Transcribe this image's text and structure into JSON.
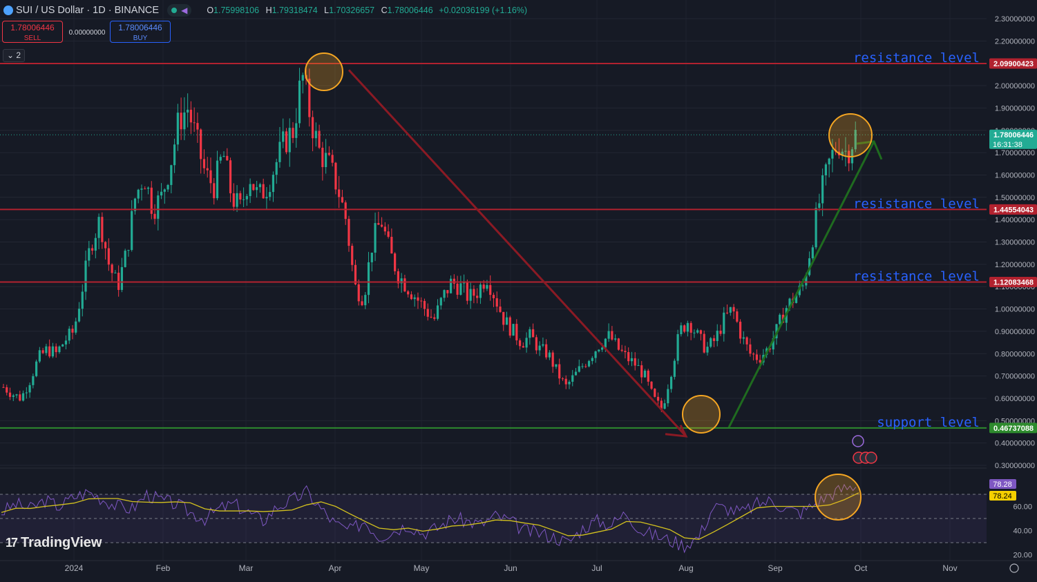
{
  "header": {
    "symbol": "SUI / US Dollar · 1D · BINANCE",
    "open_label": "O",
    "open": "1.75998106",
    "high_label": "H",
    "high": "1.79318474",
    "low_label": "L",
    "low": "1.70326657",
    "close_label": "C",
    "close": "1.78006446",
    "change": "+0.02036199 (+1.16%)"
  },
  "trade": {
    "sell_price": "1.78006446",
    "sell_label": "SELL",
    "spread": "0.00000000",
    "buy_price": "1.78006446",
    "buy_label": "BUY"
  },
  "indicator_toggle": "2",
  "logo": "TradingView",
  "colors": {
    "up": "#22ab94",
    "down": "#f23645",
    "resistance": "#b2222f",
    "support": "#2e8b2e",
    "rsi": "#7e57c2",
    "rsi_ma": "#d4c21e",
    "annotation_text": "#2962ff",
    "circle": "#f5a623"
  },
  "chart_data": {
    "type": "candlestick",
    "y_axis": {
      "min": 0.3,
      "max": 2.3,
      "step": 0.1,
      "decimals": 8
    },
    "x_ticks": [
      "2024",
      "Feb",
      "Mar",
      "Apr",
      "May",
      "Jun",
      "Jul",
      "Aug",
      "Sep",
      "Oct",
      "Nov"
    ],
    "close_series_approx": [
      0.65,
      0.62,
      0.6,
      0.68,
      0.78,
      0.82,
      0.8,
      0.86,
      0.9,
      1.1,
      1.3,
      1.4,
      1.2,
      1.1,
      1.25,
      1.5,
      1.6,
      1.45,
      1.5,
      1.65,
      1.85,
      1.9,
      1.75,
      1.6,
      1.55,
      1.7,
      1.5,
      1.45,
      1.6,
      1.5,
      1.55,
      1.65,
      1.75,
      1.8,
      2.05,
      1.85,
      1.7,
      1.65,
      1.55,
      1.4,
      1.1,
      1.05,
      1.3,
      1.4,
      1.25,
      1.15,
      1.1,
      1.05,
      1.0,
      0.95,
      1.05,
      1.12,
      1.1,
      1.05,
      1.08,
      1.15,
      1.05,
      0.95,
      0.9,
      0.85,
      0.88,
      0.82,
      0.8,
      0.72,
      0.65,
      0.7,
      0.75,
      0.8,
      0.85,
      0.88,
      0.82,
      0.78,
      0.75,
      0.7,
      0.6,
      0.55,
      0.72,
      0.9,
      0.95,
      0.88,
      0.82,
      0.86,
      0.95,
      1.0,
      0.88,
      0.8,
      0.78,
      0.82,
      0.9,
      1.0,
      1.05,
      1.1,
      1.3,
      1.5,
      1.65,
      1.75,
      1.7,
      1.78
    ],
    "price_labels": [
      {
        "value": 2.09900423,
        "text": "2.09900423",
        "color": "#b2222f"
      },
      {
        "value": 1.78006446,
        "text": "1.78006446",
        "sub": "16:31:38",
        "color": "#22ab94"
      },
      {
        "value": 1.44554043,
        "text": "1.44554043",
        "color": "#b2222f"
      },
      {
        "value": 1.12083468,
        "text": "1.12083468",
        "color": "#b2222f"
      },
      {
        "value": 0.46737088,
        "text": "0.46737088",
        "color": "#2e8b2e"
      }
    ],
    "horizontal_levels": [
      {
        "value": 2.09900423,
        "label": "resistance level",
        "color": "#b2222f"
      },
      {
        "value": 1.44554043,
        "label": "resistance level",
        "color": "#b2222f"
      },
      {
        "value": 1.12083468,
        "label": "resistance level",
        "color": "#b2222f"
      },
      {
        "value": 0.46737088,
        "label": "support level",
        "color": "#2e8b2e"
      }
    ],
    "rsi": {
      "y_ticks": [
        "60.00",
        "40.00",
        "20.00"
      ],
      "levels": [
        70,
        50,
        30
      ],
      "rsi_value": "78.28",
      "ma_value": "78.24",
      "values_approx": [
        55,
        62,
        58,
        65,
        60,
        68,
        72,
        66,
        60,
        58,
        70,
        65,
        62,
        55,
        50,
        58,
        62,
        55,
        48,
        60,
        65,
        72,
        58,
        45,
        40,
        48,
        35,
        40,
        45,
        38,
        42,
        50,
        48,
        45,
        52,
        48,
        40,
        38,
        35,
        30,
        42,
        48,
        45,
        55,
        40,
        36,
        32,
        28,
        35,
        60,
        58,
        55,
        62,
        65,
        58,
        55,
        62,
        70,
        75,
        78
      ]
    }
  }
}
